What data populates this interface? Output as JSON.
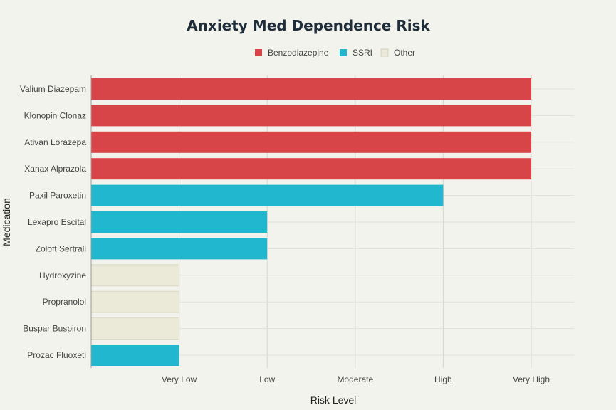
{
  "chart_data": {
    "type": "bar",
    "orientation": "horizontal",
    "title": "Anxiety Med Dependence Risk",
    "xlabel": "Risk Level",
    "ylabel": "Medication",
    "x_ticks": [
      "Very Low",
      "Low",
      "Moderate",
      "High",
      "Very High"
    ],
    "xlim": [
      0,
      5
    ],
    "legend": {
      "placement": "top-center",
      "entries": [
        {
          "name": "Benzodiazepine",
          "color": "#d84549"
        },
        {
          "name": "SSRI",
          "color": "#21b8cf"
        },
        {
          "name": "Other",
          "color": "#ebe9d8"
        }
      ]
    },
    "categories": [
      "Valium Diazepam",
      "Klonopin Clonaz",
      "Ativan Lorazepa",
      "Xanax Alprazola",
      "Paxil Paroxetin",
      "Lexapro Escital",
      "Zoloft Sertrali",
      "Hydroxyzine",
      "Propranolol",
      "Buspar Buspiron",
      "Prozac Fluoxeti"
    ],
    "values": [
      5,
      5,
      5,
      5,
      4,
      2,
      2,
      1,
      1,
      1,
      1
    ],
    "groups": [
      "Benzodiazepine",
      "Benzodiazepine",
      "Benzodiazepine",
      "Benzodiazepine",
      "SSRI",
      "SSRI",
      "SSRI",
      "Other",
      "Other",
      "Other",
      "SSRI"
    ],
    "grid": true
  }
}
